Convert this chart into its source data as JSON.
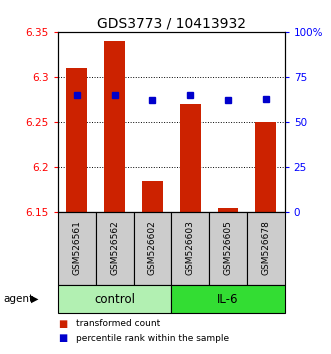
{
  "title": "GDS3773 / 10413932",
  "samples": [
    "GSM526561",
    "GSM526562",
    "GSM526602",
    "GSM526603",
    "GSM526605",
    "GSM526678"
  ],
  "transformed_counts": [
    6.31,
    6.34,
    6.185,
    6.27,
    6.155,
    6.25
  ],
  "percentile_ranks": [
    65,
    65,
    62,
    65,
    62,
    63
  ],
  "ylim_left": [
    6.15,
    6.35
  ],
  "ylim_right": [
    0,
    100
  ],
  "yticks_left": [
    6.15,
    6.2,
    6.25,
    6.3,
    6.35
  ],
  "yticks_right": [
    0,
    25,
    50,
    75,
    100
  ],
  "ytick_labels_right": [
    "0",
    "25",
    "50",
    "75",
    "100%"
  ],
  "groups": [
    {
      "label": "control",
      "indices": [
        0,
        1,
        2
      ],
      "color": "#b2f0b2"
    },
    {
      "label": "IL-6",
      "indices": [
        3,
        4,
        5
      ],
      "color": "#33dd33"
    }
  ],
  "bar_color": "#cc2200",
  "dot_color": "#0000cc",
  "bar_bottom": 6.15,
  "bar_width": 0.55,
  "sample_box_color": "#cccccc",
  "legend_bar_label": "transformed count",
  "legend_dot_label": "percentile rank within the sample",
  "agent_label": "agent",
  "title_fontsize": 10,
  "tick_fontsize": 7.5,
  "sample_fontsize": 6.5,
  "group_fontsize": 8.5
}
